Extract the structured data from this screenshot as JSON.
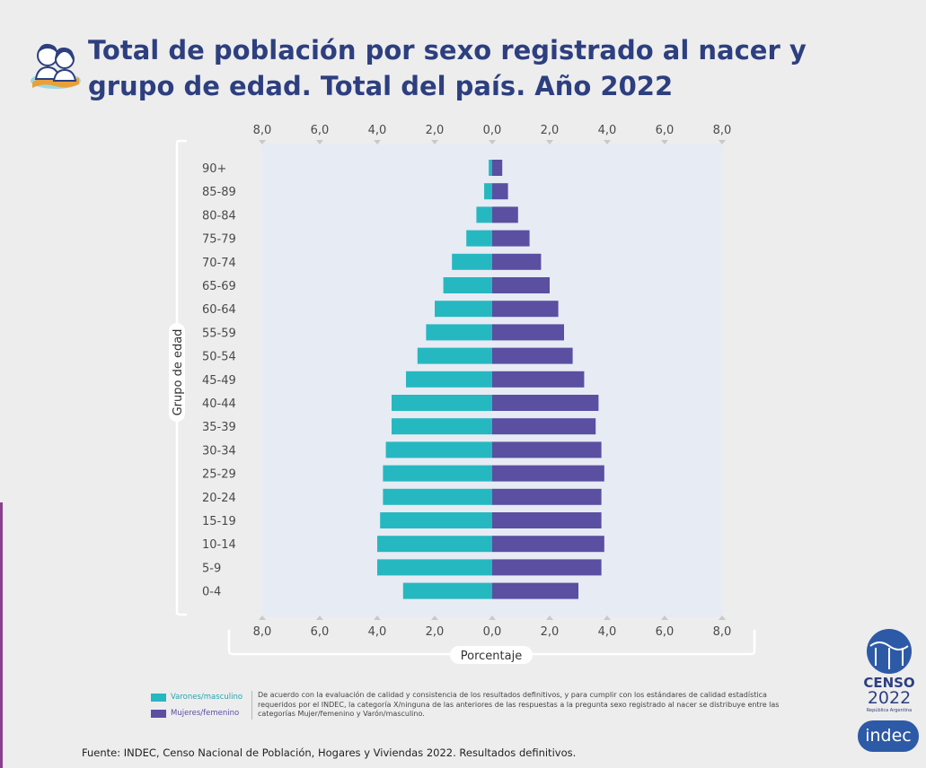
{
  "header": {
    "title_line1": "Total de población por sexo registrado al nacer y",
    "title_line2": "grupo de edad. Total del país. Año 2022"
  },
  "chart_data": {
    "type": "bar",
    "orientation": "horizontal-population-pyramid",
    "categories": [
      "0-4",
      "5-9",
      "10-14",
      "15-19",
      "20-24",
      "25-29",
      "30-34",
      "35-39",
      "40-44",
      "45-49",
      "50-54",
      "55-59",
      "60-64",
      "65-69",
      "70-74",
      "75-79",
      "80-84",
      "85-89",
      "90+"
    ],
    "series": [
      {
        "name": "Varones/masculino",
        "color": "#26b8c0",
        "values": [
          3.1,
          4.0,
          4.0,
          3.9,
          3.8,
          3.8,
          3.7,
          3.5,
          3.5,
          3.0,
          2.6,
          2.3,
          2.0,
          1.7,
          1.4,
          0.9,
          0.55,
          0.28,
          0.12
        ]
      },
      {
        "name": "Mujeres/femenino",
        "color": "#5a4fa0",
        "values": [
          3.0,
          3.8,
          3.9,
          3.8,
          3.8,
          3.9,
          3.8,
          3.6,
          3.7,
          3.2,
          2.8,
          2.5,
          2.3,
          2.0,
          1.7,
          1.3,
          0.9,
          0.55,
          0.35
        ]
      }
    ],
    "xlim": [
      -8,
      8
    ],
    "xticks": [
      "8,0",
      "6,0",
      "4,0",
      "2,0",
      "0,0",
      "2,0",
      "4,0",
      "6,0",
      "8,0"
    ],
    "xlabel": "Porcentaje",
    "ylabel": "Grupo de edad",
    "legend_position": "bottom-left",
    "grid": false
  },
  "legend": {
    "male_label": "Varones/masculino",
    "female_label": "Mujeres/femenino"
  },
  "note": "De acuerdo con la evaluación de calidad y consistencia de los resultados definitivos, y para cumplir con los estándares de calidad estadística requeridos por el INDEC, la categoría X/ninguna de las anteriores de las respuestas a la pregunta sexo registrado al nacer se distribuye entre las categorías Mujer/femenino y Varón/masculino.",
  "source": "Fuente: INDEC, Censo Nacional de Población, Hogares y Viviendas 2022. Resultados definitivos.",
  "logos": {
    "censo_word": "CENSO",
    "censo_year": "2022",
    "censo_country": "República Argentina",
    "indec": "indec"
  },
  "colors": {
    "title": "#2d3f7e",
    "male": "#26b8c0",
    "female": "#5a4fa0",
    "plot_bg": "#e7ebf4"
  }
}
